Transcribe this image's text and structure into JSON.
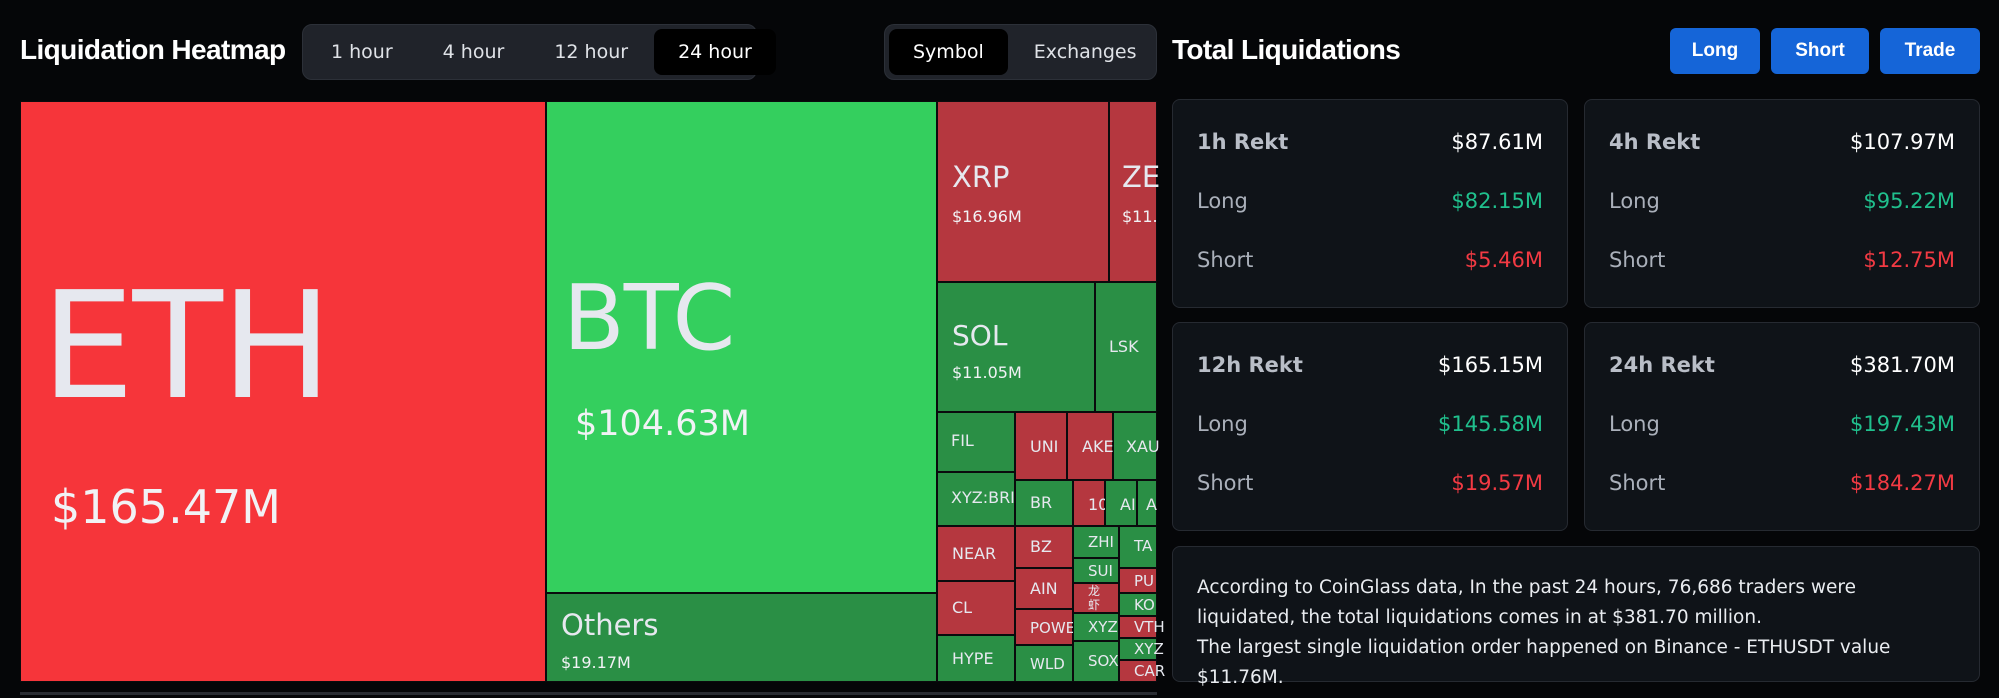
{
  "heatmap": {
    "title": "Liquidation Heatmap",
    "time_tabs": [
      "1 hour",
      "4 hour",
      "12 hour",
      "24 hour"
    ],
    "active_time_tab": "24 hour",
    "view_tabs": [
      "Symbol",
      "Exchanges"
    ],
    "active_view_tab": "Symbol",
    "cells": {
      "eth": {
        "symbol": "ETH",
        "value": "$165.47M"
      },
      "btc": {
        "symbol": "BTC",
        "value": "$104.63M"
      },
      "others": {
        "symbol": "Others",
        "value": "$19.17M"
      },
      "xrp": {
        "symbol": "XRP",
        "value": "$16.96M"
      },
      "zec": {
        "symbol": "ZE",
        "value": "$11."
      },
      "sol": {
        "symbol": "SOL",
        "value": "$11.05M"
      },
      "lsk": {
        "symbol": "LSK"
      },
      "fil": {
        "symbol": "FIL"
      },
      "uni": {
        "symbol": "UNI"
      },
      "ake": {
        "symbol": "AKE"
      },
      "xau": {
        "symbol": "XAU"
      },
      "xyzbr": {
        "symbol": "XYZ:BRI"
      },
      "br": {
        "symbol": "BR"
      },
      "ten": {
        "symbol": "10"
      },
      "ad": {
        "symbol": "AI"
      },
      "a": {
        "symbol": "A"
      },
      "near": {
        "symbol": "NEAR"
      },
      "bz": {
        "symbol": "BZ"
      },
      "zhi": {
        "symbol": "ZHI"
      },
      "ta": {
        "symbol": "TA"
      },
      "ain": {
        "symbol": "AIN"
      },
      "sui": {
        "symbol": "SUI"
      },
      "pu": {
        "symbol": "PU"
      },
      "cl": {
        "symbol": "CL"
      },
      "long": {
        "symbol": "龙虾"
      },
      "ko": {
        "symbol": "KO"
      },
      "powe": {
        "symbol": "POWE"
      },
      "xyz1": {
        "symbol": "XYZ"
      },
      "vt": {
        "symbol": "VTH"
      },
      "hype": {
        "symbol": "HYPE"
      },
      "wld": {
        "symbol": "WLD"
      },
      "xyz2": {
        "symbol": "XYZ"
      },
      "sox": {
        "symbol": "SOX"
      },
      "car": {
        "symbol": "CAR"
      }
    }
  },
  "totals": {
    "title": "Total Liquidations",
    "buttons": {
      "long": "Long",
      "short": "Short",
      "trade": "Trade"
    },
    "cards": [
      {
        "label": "1h Rekt",
        "total": "$87.61M",
        "long_label": "Long",
        "long": "$82.15M",
        "short_label": "Short",
        "short": "$5.46M"
      },
      {
        "label": "4h Rekt",
        "total": "$107.97M",
        "long_label": "Long",
        "long": "$95.22M",
        "short_label": "Short",
        "short": "$12.75M"
      },
      {
        "label": "12h Rekt",
        "total": "$165.15M",
        "long_label": "Long",
        "long": "$145.58M",
        "short_label": "Short",
        "short": "$19.57M"
      },
      {
        "label": "24h Rekt",
        "total": "$381.70M",
        "long_label": "Long",
        "long": "$197.43M",
        "short_label": "Short",
        "short": "$184.27M"
      }
    ],
    "summary_line1": "According to CoinGlass data, In the past 24 hours, 76,686 traders were liquidated, the total liquidations comes in at $381.70 million.",
    "summary_line2": "The largest single liquidation order happened on Binance - ETHUSDT value $11.76M."
  },
  "colors": {
    "long": "#20c08d",
    "short": "#f23a43",
    "accent": "#1565d8",
    "heat_red": "#f6353a",
    "heat_green": "#34cf5e"
  }
}
